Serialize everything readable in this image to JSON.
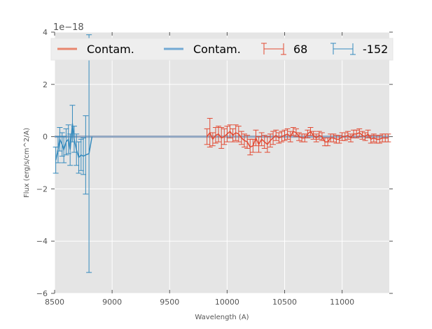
{
  "chart_data": {
    "type": "line",
    "title": "",
    "xlabel": "Wavelength (A)",
    "ylabel": "Flux (erg/s/cm^2/A)",
    "offset_text": "1e−18",
    "xlim": [
      8500,
      11410
    ],
    "ylim": [
      -6,
      4
    ],
    "xticks": [
      8500,
      9000,
      9500,
      10000,
      10500,
      11000
    ],
    "xtick_labels": [
      "8500",
      "9000",
      "9500",
      "10000",
      "10500",
      "11000"
    ],
    "yticks": [
      4,
      2,
      0,
      -2,
      -4,
      -6
    ],
    "ytick_labels": [
      "4",
      "2",
      "0",
      "−2",
      "−4",
      "−6"
    ],
    "grid": true,
    "legend_placement": "top",
    "legend": [
      {
        "label": "Contam.",
        "kind": "line",
        "color": "#E8866E"
      },
      {
        "label": "Contam.",
        "kind": "line",
        "color": "#72A9D4"
      },
      {
        "label": "68",
        "kind": "errorbar",
        "color": "#E24A33"
      },
      {
        "label": "-152",
        "kind": "errorbar",
        "color": "#348ABD"
      }
    ],
    "series": [
      {
        "name": "Contam. (68)",
        "kind": "line",
        "color": "#E8866E",
        "x": [
          8500,
          11410
        ],
        "y": [
          0,
          0
        ]
      },
      {
        "name": "Contam. (-152)",
        "kind": "line",
        "color": "#72A9D4",
        "x": [
          8500,
          11410
        ],
        "y": [
          0,
          0
        ]
      },
      {
        "name": "-152",
        "kind": "errorbar",
        "color": "#348ABD",
        "x": [
          8510,
          8530,
          8545,
          8565,
          8580,
          8600,
          8620,
          8635,
          8655,
          8670,
          8690,
          8710,
          8730,
          8750,
          8770,
          8799,
          8825
        ],
        "y": [
          -0.9,
          -0.5,
          -0.1,
          -0.3,
          -0.5,
          -0.2,
          -0.1,
          -0.5,
          0.5,
          -0.1,
          -0.5,
          -0.8,
          -0.7,
          -0.75,
          -0.7,
          -0.65,
          0.0
        ],
        "err": [
          0.5,
          0.5,
          0.45,
          0.45,
          0.5,
          0.5,
          0.55,
          0.6,
          0.7,
          0.5,
          0.6,
          0.6,
          0.6,
          0.7,
          1.5,
          4.55,
          0
        ]
      },
      {
        "name": "68",
        "kind": "errorbar",
        "color": "#E24A33",
        "x_start": 9825,
        "x_step": 25,
        "y": [
          0.0,
          0.15,
          -0.1,
          0.05,
          0.1,
          -0.05,
          0.0,
          0.1,
          0.2,
          0.05,
          0.15,
          0.1,
          -0.05,
          -0.15,
          -0.2,
          -0.4,
          -0.35,
          -0.05,
          -0.3,
          -0.1,
          -0.2,
          -0.3,
          -0.15,
          -0.05,
          0.05,
          -0.05,
          0.0,
          0.05,
          0.1,
          0.0,
          0.2,
          0.15,
          0.0,
          -0.05,
          -0.05,
          0.1,
          0.2,
          0.05,
          -0.05,
          0.05,
          0.0,
          -0.2,
          -0.2,
          -0.05,
          -0.05,
          -0.1,
          -0.1,
          0.0,
          0.0,
          0.05,
          -0.05,
          0.1,
          0.1,
          0.15,
          0.05,
          0.0,
          0.1,
          -0.1,
          -0.05,
          -0.1,
          -0.1,
          -0.05,
          -0.05,
          -0.05
        ],
        "err": [
          0.3,
          0.55,
          0.25,
          0.3,
          0.3,
          0.4,
          0.3,
          0.3,
          0.25,
          0.25,
          0.3,
          0.3,
          0.25,
          0.25,
          0.25,
          0.3,
          0.25,
          0.3,
          0.3,
          0.25,
          0.25,
          0.3,
          0.25,
          0.25,
          0.2,
          0.2,
          0.2,
          0.2,
          0.2,
          0.2,
          0.15,
          0.15,
          0.15,
          0.15,
          0.15,
          0.15,
          0.15,
          0.15,
          0.15,
          0.15,
          0.15,
          0.15,
          0.15,
          0.15,
          0.15,
          0.15,
          0.15,
          0.15,
          0.15,
          0.15,
          0.15,
          0.15,
          0.15,
          0.15,
          0.15,
          0.15,
          0.15,
          0.15,
          0.15,
          0.15,
          0.15,
          0.15,
          0.15,
          0.15
        ]
      }
    ]
  }
}
